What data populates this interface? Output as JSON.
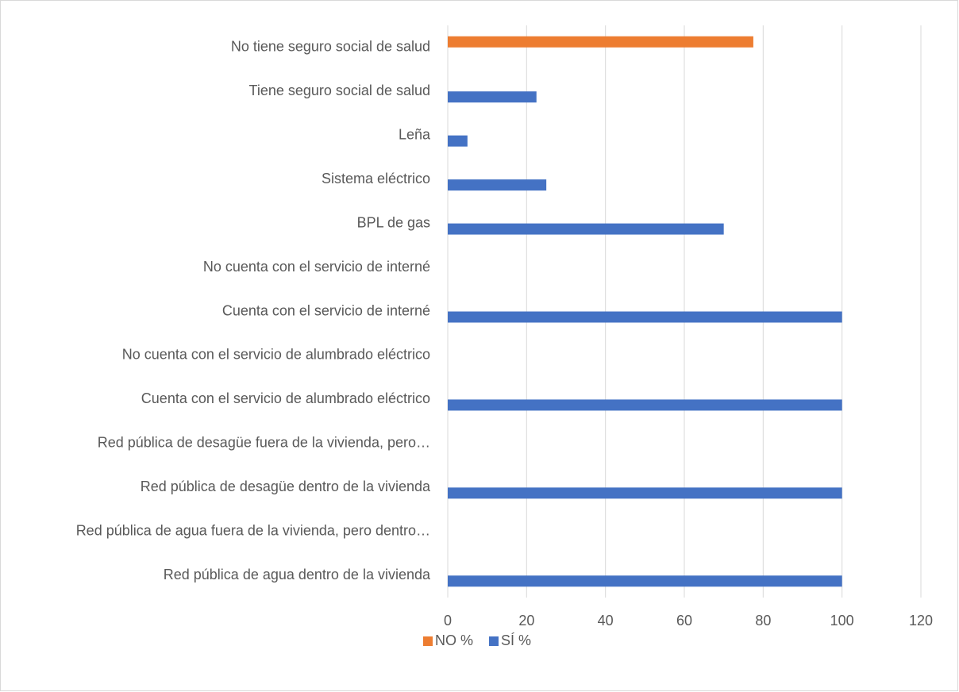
{
  "chart_data": {
    "type": "bar",
    "orientation": "horizontal",
    "categories": [
      "No tiene seguro social de salud",
      "Tiene seguro social de salud",
      "Leña",
      "Sistema eléctrico",
      "BPL de gas",
      "No cuenta con el servicio de interné",
      "Cuenta con el servicio de interné",
      "No cuenta con el servicio de alumbrado eléctrico",
      "Cuenta con el servicio de alumbrado eléctrico",
      "Red pública de desagüe fuera de la vivienda, pero…",
      "Red pública de desagüe dentro de la vivienda",
      "Red pública de agua fuera de la vivienda, pero dentro…",
      "Red pública de agua dentro de la vivienda"
    ],
    "series": [
      {
        "name": "NO %",
        "color": "#ed7d31",
        "values": [
          77.5,
          null,
          null,
          null,
          null,
          null,
          null,
          null,
          null,
          null,
          null,
          null,
          null
        ]
      },
      {
        "name": "SÍ %",
        "color": "#4472c4",
        "values": [
          null,
          22.5,
          5,
          25,
          70,
          null,
          100,
          null,
          100,
          null,
          100,
          null,
          100
        ]
      }
    ],
    "xlim": [
      0,
      120
    ],
    "xticks": [
      0,
      20,
      40,
      60,
      80,
      100,
      120
    ],
    "grid": true,
    "legend": "bottom"
  }
}
